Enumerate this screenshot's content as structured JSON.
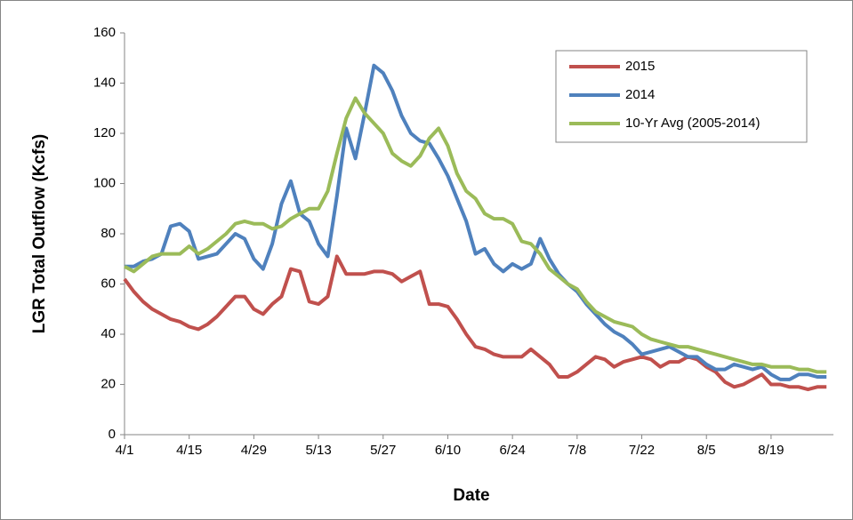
{
  "chart_data": {
    "type": "line",
    "x_label": "Date",
    "y_label": "LGR Total Outflow (Kcfs)",
    "categories": [
      "4/1",
      null,
      null,
      null,
      null,
      null,
      null,
      "4/15",
      null,
      null,
      null,
      null,
      null,
      null,
      "4/29",
      null,
      null,
      null,
      null,
      null,
      null,
      "5/13",
      null,
      null,
      null,
      null,
      null,
      null,
      "5/27",
      null,
      null,
      null,
      null,
      null,
      null,
      "6/10",
      null,
      null,
      null,
      null,
      null,
      null,
      "6/24",
      null,
      null,
      null,
      null,
      null,
      null,
      "7/8",
      null,
      null,
      null,
      null,
      null,
      null,
      "7/22",
      null,
      null,
      null,
      null,
      null,
      null,
      "8/5",
      null,
      null,
      null,
      null,
      null,
      null,
      "8/19",
      null,
      null,
      null,
      null,
      null,
      null
    ],
    "series": [
      {
        "name": "2015",
        "color": "#c0504d",
        "values": [
          62,
          57,
          53,
          50,
          48,
          46,
          45,
          43,
          42,
          44,
          47,
          51,
          55,
          55,
          50,
          48,
          52,
          55,
          66,
          65,
          53,
          52,
          55,
          71,
          64,
          64,
          64,
          65,
          65,
          64,
          61,
          63,
          65,
          52,
          52,
          51,
          46,
          40,
          35,
          34,
          32,
          31,
          31,
          31,
          34,
          31,
          28,
          23,
          23,
          25,
          28,
          31,
          30,
          27,
          29,
          30,
          31,
          30,
          27,
          29,
          29,
          31,
          30,
          27,
          25,
          21,
          19,
          20,
          22,
          24,
          20,
          20,
          19,
          19,
          18,
          19,
          19
        ]
      },
      {
        "name": "2014",
        "color": "#4f81bd",
        "values": [
          67,
          67,
          69,
          70,
          72,
          83,
          84,
          81,
          70,
          71,
          72,
          76,
          80,
          78,
          70,
          66,
          76,
          92,
          101,
          88,
          85,
          76,
          71,
          95,
          122,
          110,
          128,
          147,
          144,
          137,
          127,
          120,
          117,
          116,
          110,
          103,
          94,
          85,
          72,
          74,
          68,
          65,
          68,
          66,
          68,
          78,
          70,
          64,
          60,
          57,
          52,
          48,
          44,
          41,
          39,
          36,
          32,
          33,
          34,
          35,
          33,
          31,
          31,
          28,
          26,
          26,
          28,
          27,
          26,
          27,
          24,
          22,
          22,
          24,
          24,
          23,
          23
        ]
      },
      {
        "name": "10-Yr Avg (2005-2014)",
        "color": "#9bbb59",
        "values": [
          67,
          65,
          68,
          71,
          72,
          72,
          72,
          75,
          72,
          74,
          77,
          80,
          84,
          85,
          84,
          84,
          82,
          83,
          86,
          88,
          90,
          90,
          97,
          112,
          126,
          134,
          128,
          124,
          120,
          112,
          109,
          107,
          111,
          118,
          122,
          115,
          104,
          97,
          94,
          88,
          86,
          86,
          84,
          77,
          76,
          72,
          66,
          63,
          60,
          58,
          53,
          49,
          47,
          45,
          44,
          43,
          40,
          38,
          37,
          36,
          35,
          35,
          34,
          33,
          32,
          31,
          30,
          29,
          28,
          28,
          27,
          27,
          27,
          26,
          26,
          25,
          25
        ]
      }
    ],
    "ylim": [
      0,
      160
    ],
    "yticks": [
      0,
      20,
      40,
      60,
      80,
      100,
      120,
      140,
      160
    ],
    "legend": "upper right"
  }
}
